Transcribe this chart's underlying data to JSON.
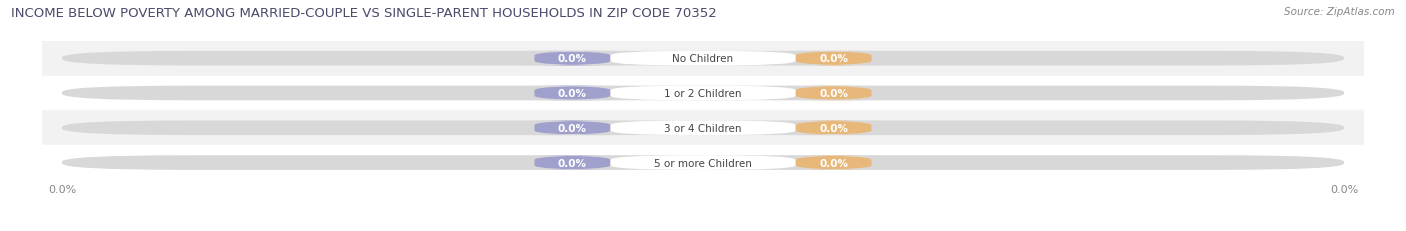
{
  "title": "INCOME BELOW POVERTY AMONG MARRIED-COUPLE VS SINGLE-PARENT HOUSEHOLDS IN ZIP CODE 70352",
  "source": "Source: ZipAtlas.com",
  "categories": [
    "No Children",
    "1 or 2 Children",
    "3 or 4 Children",
    "5 or more Children"
  ],
  "married_values": [
    0.0,
    0.0,
    0.0,
    0.0
  ],
  "single_values": [
    0.0,
    0.0,
    0.0,
    0.0
  ],
  "married_color": "#a0a0cc",
  "single_color": "#e8b87a",
  "track_color": "#d8d8d8",
  "row_bg_even": "#f2f2f2",
  "row_bg_odd": "#ffffff",
  "title_fontsize": 9.5,
  "source_fontsize": 7.5,
  "label_fontsize": 7.5,
  "tick_fontsize": 8,
  "title_color": "#4a4a6a",
  "source_color": "#888888",
  "category_color": "#444444",
  "tick_color": "#888888"
}
